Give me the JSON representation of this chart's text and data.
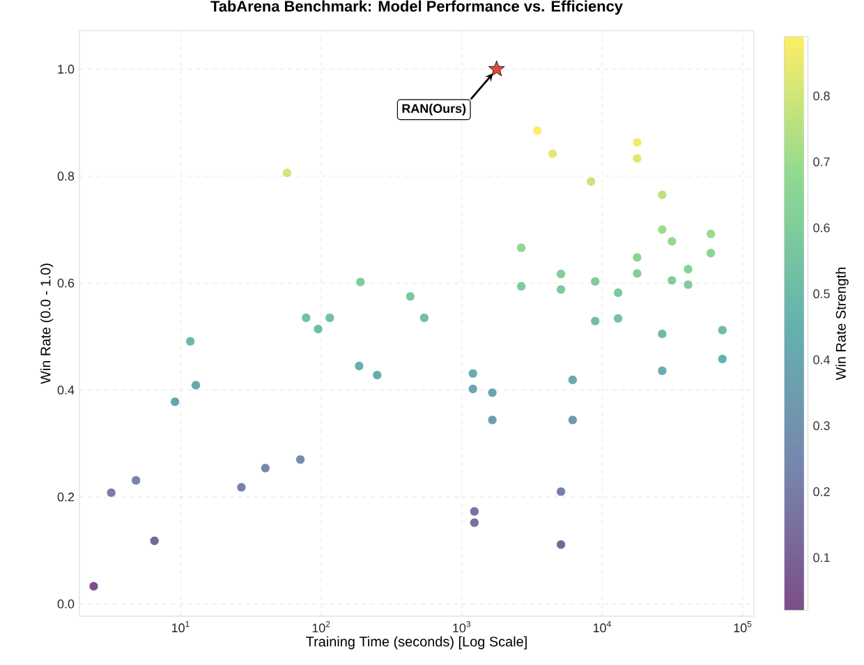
{
  "chart_data": {
    "type": "scatter",
    "title": "TabArena Benchmark: Model Performance vs. Efficiency",
    "xlabel": "Training Time (seconds) [Log Scale]",
    "ylabel": "Win Rate (0.0 - 1.0)",
    "clabel": "Win Rate Strength",
    "log": "x",
    "grid": true,
    "xlim": [
      1.9,
      120000
    ],
    "ylim": [
      -0.023,
      1.072
    ],
    "xticks": [
      {
        "value": 10,
        "label": "10$^{1}$"
      },
      {
        "value": 100,
        "label": "10$^{2}$"
      },
      {
        "value": 1000,
        "label": "10$^{3}$"
      },
      {
        "value": 10000,
        "label": "10$^{4}$"
      },
      {
        "value": 100000,
        "label": "10$^{5}$"
      }
    ],
    "yticks": [
      {
        "value": 0,
        "label": "0.0"
      },
      0.2,
      0.4,
      0.6,
      0.8,
      {
        "value": 1,
        "label": "1.0"
      }
    ],
    "clim": [
      0.02,
      0.89
    ],
    "cticks": [
      0.1,
      0.2,
      0.3,
      0.4,
      0.5,
      0.6,
      0.7,
      0.8
    ],
    "series": [
      {
        "marker": "circle",
        "colors": [
          "#7c5089",
          "#777ea9",
          "#7684ad",
          "#796799",
          "#6aa2af",
          "#6bb8aa",
          "#68a9af",
          "#7781aa",
          "#7589ae",
          "#738dae",
          "#d3e677",
          "#73c0a4",
          "#6fbda7",
          "#73c0a4",
          "#80cc9b",
          "#7bc89e",
          "#73c0a4",
          "#65b0af",
          "#66adaf",
          "#66adaf",
          "#68a7af",
          "#69a6af",
          "#6d9cae",
          "#7875a2",
          "#78709f",
          "#777fa9",
          "#796597",
          "#67abaf",
          "#6d9cae",
          "#72bfa5",
          "#73c0a4",
          "#6ebba8",
          "#66aeaf",
          "#6fbca7",
          "#65b3af",
          "#8dd892",
          "#7fcb9c",
          "#fbed67",
          "#e5e96f",
          "#83cf99",
          "#7eca9d",
          "#cae47a",
          "#80cc9b",
          "#7dc99d",
          "#f0eb6b",
          "#e1e871",
          "#89d594",
          "#83cf99",
          "#bee27f",
          "#9cdc8c",
          "#91da90",
          "#81cd9b",
          "#85d197",
          "#7fcb9c",
          "#98db8d",
          "#8bd693"
        ],
        "x": [
          2.4,
          3.2,
          4.8,
          6.5,
          9.1,
          11.7,
          12.8,
          27,
          40,
          71,
          57,
          78,
          95,
          115,
          190,
          430,
          540,
          186,
          250,
          1200,
          1200,
          1650,
          1650,
          1230,
          1230,
          5080,
          5080,
          6150,
          6150,
          8900,
          12950,
          26700,
          26700,
          71600,
          71600,
          2650,
          2650,
          3450,
          4430,
          5080,
          5080,
          8320,
          8910,
          12950,
          17700,
          17700,
          17700,
          17700,
          26700,
          26700,
          31300,
          31300,
          40800,
          40800,
          59200,
          59200
        ],
        "values": [
          0.033,
          0.208,
          0.231,
          0.118,
          0.378,
          0.491,
          0.409,
          0.218,
          0.254,
          0.27,
          0.806,
          0.535,
          0.514,
          0.535,
          0.602,
          0.575,
          0.535,
          0.445,
          0.428,
          0.431,
          0.402,
          0.395,
          0.344,
          0.173,
          0.152,
          0.21,
          0.111,
          0.419,
          0.344,
          0.529,
          0.534,
          0.505,
          0.436,
          0.512,
          0.458,
          0.666,
          0.594,
          0.885,
          0.842,
          0.617,
          0.588,
          0.79,
          0.603,
          0.582,
          0.863,
          0.833,
          0.648,
          0.618,
          0.765,
          0.7,
          0.678,
          0.605,
          0.626,
          0.597,
          0.692,
          0.656
        ],
        "cvalues": [
          0.033,
          0.208,
          0.231,
          0.118,
          0.378,
          0.491,
          0.409,
          0.218,
          0.254,
          0.27,
          0.806,
          0.535,
          0.514,
          0.535,
          0.602,
          0.575,
          0.535,
          0.445,
          0.428,
          0.431,
          0.402,
          0.395,
          0.344,
          0.173,
          0.152,
          0.21,
          0.111,
          0.419,
          0.344,
          0.529,
          0.534,
          0.505,
          0.436,
          0.512,
          0.458,
          0.666,
          0.594,
          0.885,
          0.842,
          0.617,
          0.588,
          0.79,
          0.603,
          0.582,
          0.863,
          0.833,
          0.648,
          0.618,
          0.765,
          0.7,
          0.678,
          0.605,
          0.626,
          0.597,
          0.692,
          0.656
        ]
      },
      {
        "marker": "star",
        "color": "#e04a3a",
        "x": [
          1770
        ],
        "values": [
          1.0
        ]
      }
    ],
    "annotations": [
      {
        "text": "**RAN(Ours)**",
        "x": 1770,
        "y": 1.0
      }
    ]
  }
}
